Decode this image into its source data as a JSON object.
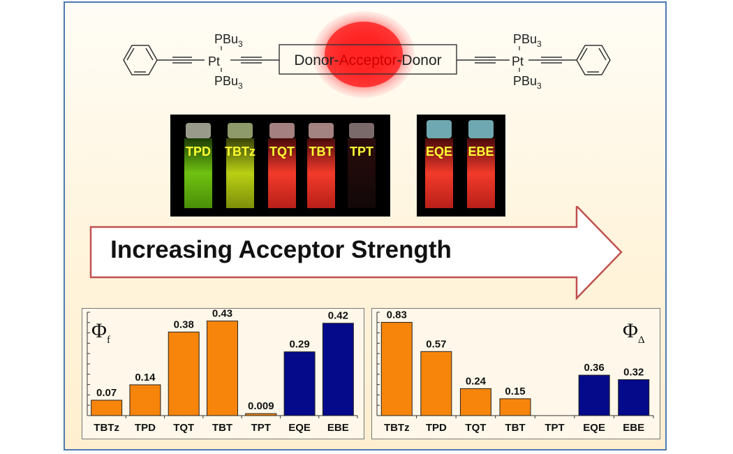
{
  "scheme": {
    "ligand_top": "PBu",
    "ligand_sub": "3",
    "metal": "Pt",
    "box_donor_left": "Donor-",
    "box_acceptor": "Acceptor",
    "box_donor_right": "-Donor"
  },
  "vials": {
    "group1": [
      "TPD",
      "TBTz",
      "TQT",
      "TBT",
      "TPT"
    ],
    "group2": [
      "EQE",
      "EBE"
    ]
  },
  "arrow_label": "Increasing Acceptor Strength",
  "colors": {
    "orange": "#f7850c",
    "navy": "#050a8a",
    "border": "#4f79b4",
    "label_yellow": "#ffff33"
  },
  "chart_data": [
    {
      "type": "bar",
      "title": "Φf",
      "symbol": "Φ",
      "subscript": "f",
      "categories": [
        "TBTz",
        "TPD",
        "TQT",
        "TBT",
        "TPT",
        "EQE",
        "EBE"
      ],
      "values": [
        0.07,
        0.14,
        0.38,
        0.43,
        0.009,
        0.29,
        0.42
      ],
      "labels": [
        "0.07",
        "0.14",
        "0.38",
        "0.43",
        "0.009",
        "0.29",
        "0.42"
      ],
      "colors": [
        "orange",
        "orange",
        "orange",
        "orange",
        "orange",
        "navy",
        "navy"
      ],
      "ylim": [
        0,
        0.47
      ]
    },
    {
      "type": "bar",
      "title": "ΦΔ",
      "symbol": "Φ",
      "subscript": "Δ",
      "categories": [
        "TBTz",
        "TPD",
        "TQT",
        "TBT",
        "TPT",
        "EQE",
        "EBE"
      ],
      "values": [
        0.83,
        0.57,
        0.24,
        0.15,
        null,
        0.36,
        0.32
      ],
      "labels": [
        "0.83",
        "0.57",
        "0.24",
        "0.15",
        "",
        "0.36",
        "0.32"
      ],
      "colors": [
        "orange",
        "orange",
        "orange",
        "orange",
        "orange",
        "navy",
        "navy"
      ],
      "ylim": [
        0,
        0.92
      ]
    }
  ]
}
